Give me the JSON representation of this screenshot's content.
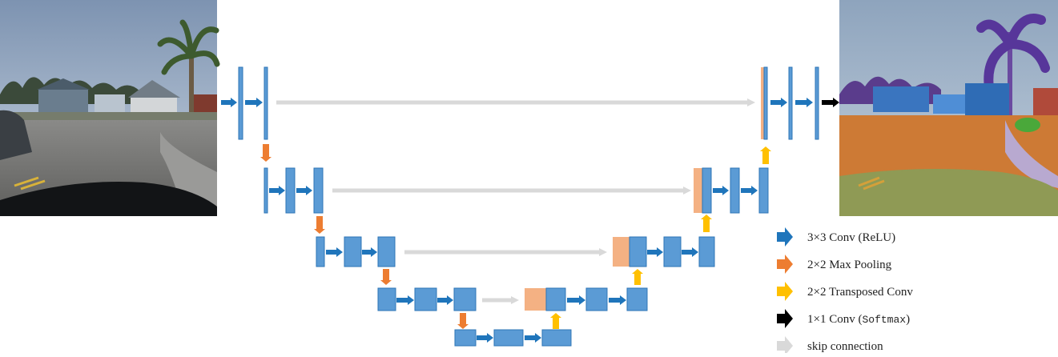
{
  "colors": {
    "conv": "#1f75bb",
    "block": "#5b9bd5",
    "block_border": "#2e75b6",
    "concat": "#f4b183",
    "pool": "#ed7d31",
    "upconv": "#ffc000",
    "final": "#000000",
    "skip": "#d9d9d9"
  },
  "images": {
    "input": "input-street-photo",
    "output": "output-segmentation-map"
  },
  "legend": {
    "conv_label": "3×3 Conv (ReLU)",
    "pool_label": "2×2 Max Pooling",
    "upconv_label": "2×2 Transposed Conv",
    "final_label_prefix": "1×1 Conv (",
    "final_label_mono": "Softmax",
    "final_label_suffix": ")",
    "skip_label": "skip connection"
  }
}
